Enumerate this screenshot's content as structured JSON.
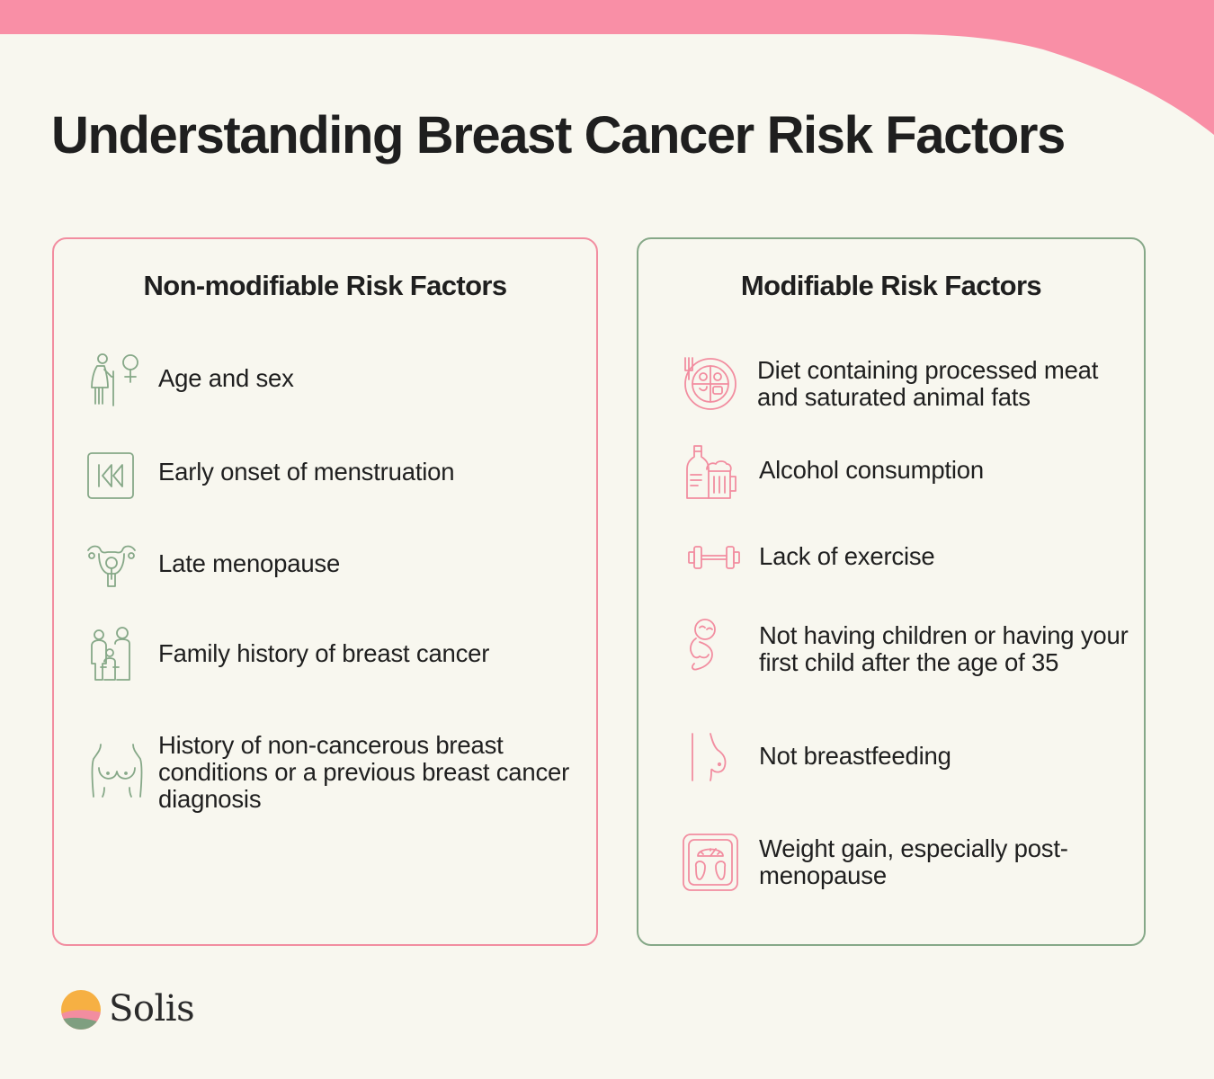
{
  "title": "Understanding Breast Cancer Risk Factors",
  "colors": {
    "background": "#f8f7ef",
    "accent_pink": "#f28da0",
    "accent_green": "#86a888",
    "text": "#1f1f1f"
  },
  "non_modifiable": {
    "heading": "Non-modifiable Risk Factors",
    "items": [
      {
        "label": "Age and sex",
        "icon": "elderly-woman-female-symbol-icon"
      },
      {
        "label": "Early onset of menstruation",
        "icon": "rewind-icon"
      },
      {
        "label": "Late menopause",
        "icon": "uterus-icon"
      },
      {
        "label": "Family history of breast cancer",
        "icon": "family-icon"
      },
      {
        "label": "History of non-cancerous breast conditions or a previous breast cancer diagnosis",
        "icon": "chest-icon"
      }
    ]
  },
  "modifiable": {
    "heading": "Modifiable Risk Factors",
    "items": [
      {
        "label": "Diet containing processed meat and saturated animal fats",
        "icon": "food-plate-icon"
      },
      {
        "label": "Alcohol consumption",
        "icon": "bottle-beer-icon"
      },
      {
        "label": "Lack of exercise",
        "icon": "dumbbell-icon"
      },
      {
        "label": "Not having children or having your first child after the age of 35",
        "icon": "baby-icon"
      },
      {
        "label": "Not breastfeeding",
        "icon": "breast-icon"
      },
      {
        "label": "Weight gain, especially post-menopause",
        "icon": "scale-icon"
      }
    ]
  },
  "brand": {
    "name": "Solis",
    "icon": "solis-logo-icon"
  }
}
